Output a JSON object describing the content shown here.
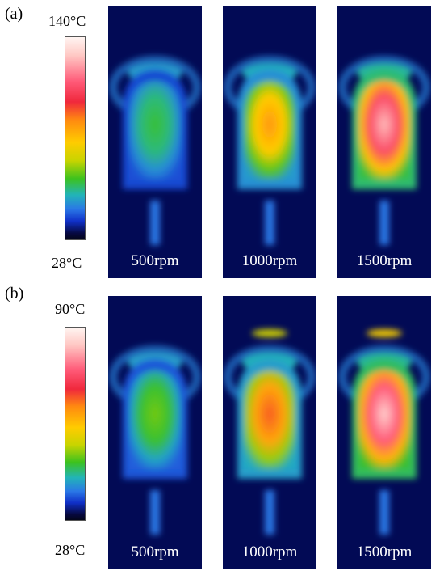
{
  "panels": [
    {
      "tag": "(a)",
      "scale_max": "140°C",
      "scale_min": "28°C",
      "frames": [
        {
          "label": "500rpm",
          "level": 0.35
        },
        {
          "label": "1000rpm",
          "level": 0.62
        },
        {
          "label": "1500rpm",
          "level": 0.9
        }
      ]
    },
    {
      "tag": "(b)",
      "scale_max": "90°C",
      "scale_min": "28°C",
      "frames": [
        {
          "label": "500rpm",
          "level": 0.4
        },
        {
          "label": "1000rpm",
          "level": 0.68
        },
        {
          "label": "1500rpm",
          "level": 0.93
        }
      ]
    }
  ],
  "colors": {
    "background": "#020a55",
    "colormap": [
      "#04061a",
      "#1030c8",
      "#2a78e6",
      "#22b4b8",
      "#3cc21e",
      "#c8d400",
      "#ffcc00",
      "#ff8a10",
      "#f0283c",
      "#ff5a78",
      "#ffc8c4",
      "#fff5f2"
    ]
  }
}
